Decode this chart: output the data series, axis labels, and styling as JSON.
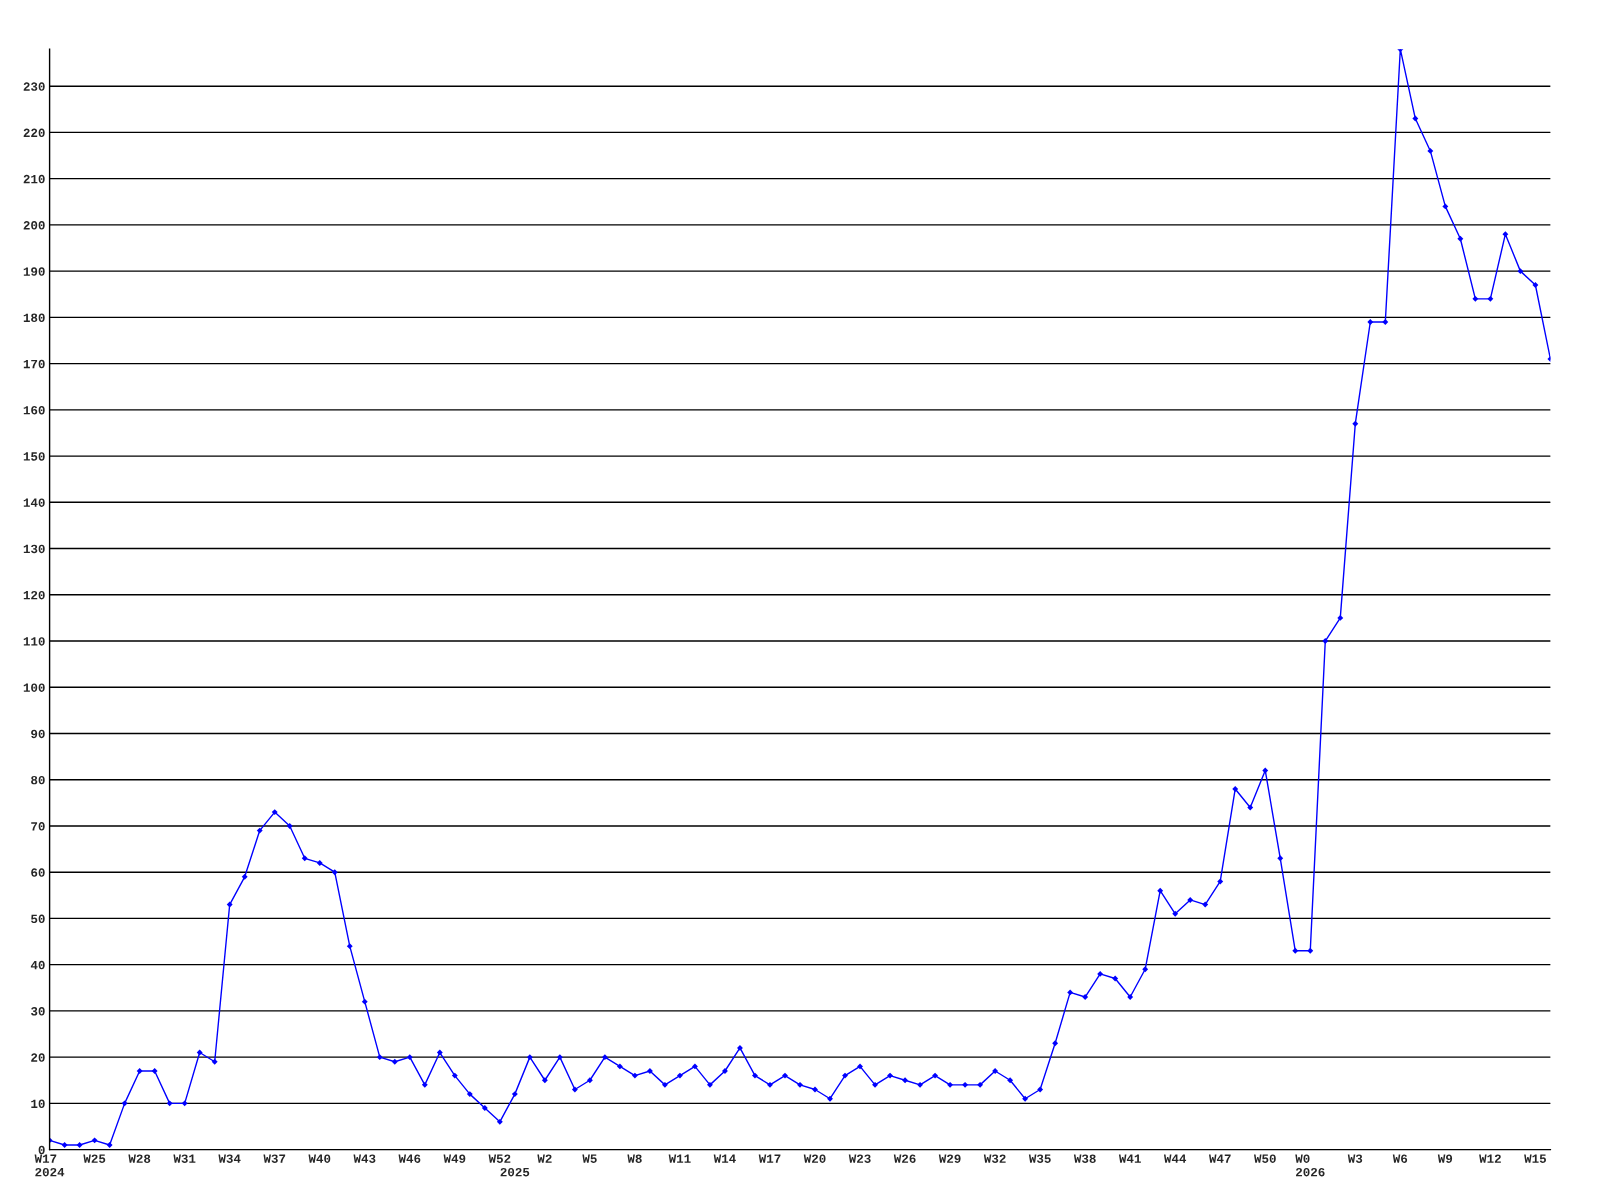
{
  "chart_data": {
    "type": "line",
    "categories": [
      "W17\n2024",
      null,
      null,
      "W25",
      null,
      null,
      "W28",
      null,
      null,
      "W31",
      null,
      null,
      "W34",
      null,
      null,
      "W37",
      null,
      null,
      "W40",
      null,
      null,
      "W43",
      null,
      null,
      "W46",
      null,
      null,
      "W49",
      null,
      null,
      "W52",
      "\n2025",
      null,
      "W2",
      null,
      null,
      "W5",
      null,
      null,
      "W8",
      null,
      null,
      "W11",
      null,
      null,
      "W14",
      null,
      null,
      "W17",
      null,
      null,
      "W20",
      null,
      null,
      "W23",
      null,
      null,
      "W26",
      null,
      null,
      "W29",
      null,
      null,
      "W32",
      null,
      null,
      "W35",
      null,
      null,
      "W38",
      null,
      null,
      "W41",
      null,
      null,
      "W44",
      null,
      null,
      "W47",
      null,
      null,
      "W50",
      null,
      null,
      "W0\n2026",
      null,
      null,
      "W3",
      null,
      null,
      "W6",
      null,
      null,
      "W9",
      null,
      null,
      "W12",
      null,
      null,
      "W15",
      null
    ],
    "series": [
      {
        "color": "#0000ff",
        "values": [
          2,
          1,
          1,
          2,
          1,
          10,
          17,
          17,
          10,
          10,
          21,
          19,
          53,
          59,
          69,
          73,
          70,
          63,
          62,
          60,
          44,
          32,
          20,
          19,
          20,
          14,
          21,
          16,
          12,
          9,
          6,
          12,
          20,
          15,
          20,
          13,
          15,
          20,
          18,
          16,
          17,
          14,
          16,
          18,
          14,
          17,
          22,
          16,
          14,
          16,
          14,
          13,
          11,
          16,
          18,
          14,
          16,
          15,
          14,
          16,
          14,
          14,
          14,
          17,
          15,
          11,
          13,
          23,
          34,
          33,
          38,
          37,
          33,
          39,
          56,
          51,
          54,
          53,
          58,
          78,
          74,
          82,
          63,
          43,
          43,
          110,
          115,
          157,
          179,
          179,
          238,
          223,
          216,
          204,
          197,
          184,
          184,
          198,
          190,
          187,
          171
        ]
      }
    ],
    "ylim": [
      0,
      238
    ],
    "yticks": [
      0,
      10,
      20,
      30,
      40,
      50,
      60,
      70,
      80,
      90,
      100,
      110,
      120,
      130,
      140,
      150,
      160,
      170,
      180,
      190,
      200,
      210,
      220,
      230
    ],
    "grid": "y",
    "marker": "diamond",
    "line_style": "solid"
  }
}
